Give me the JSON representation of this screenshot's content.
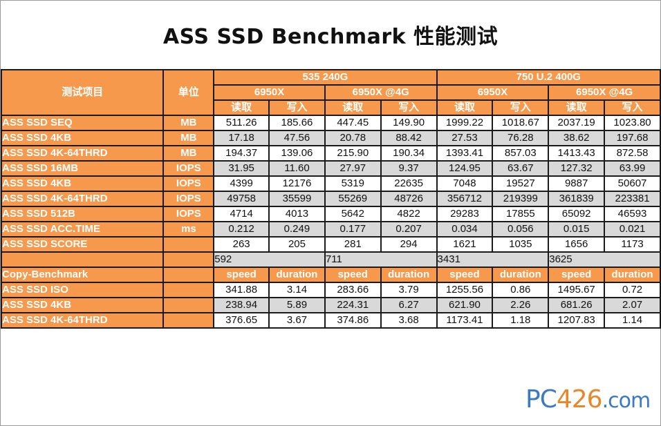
{
  "title": "ASS SSD Benchmark 性能测试",
  "chart_data": {
    "type": "table",
    "header": {
      "item_label": "测试项目",
      "unit_label": "单位",
      "drives": [
        {
          "name": "535 240G",
          "platforms": [
            "6950X",
            "6950X @4G"
          ]
        },
        {
          "name": "750 U.2 400G",
          "platforms": [
            "6950X",
            "6950X @4G"
          ]
        }
      ],
      "read_label": "读取",
      "write_label": "写入"
    },
    "rows": [
      {
        "label": "ASS SSD SEQ",
        "unit": "MB",
        "values": [
          "511.26",
          "185.66",
          "447.45",
          "149.90",
          "1999.22",
          "1018.67",
          "2037.19",
          "1023.80"
        ]
      },
      {
        "label": "ASS SSD 4KB",
        "unit": "MB",
        "values": [
          "17.18",
          "47.56",
          "20.78",
          "88.42",
          "27.53",
          "76.28",
          "38.62",
          "197.68"
        ]
      },
      {
        "label": "ASS SSD 4K-64THRD",
        "unit": "MB",
        "values": [
          "194.37",
          "139.06",
          "215.90",
          "190.34",
          "1393.41",
          "857.03",
          "1413.43",
          "872.58"
        ]
      },
      {
        "label": "ASS SSD 16MB",
        "unit": "IOPS",
        "values": [
          "31.95",
          "11.60",
          "27.97",
          "9.37",
          "124.95",
          "63.67",
          "127.32",
          "63.99"
        ]
      },
      {
        "label": "ASS SSD 4KB",
        "unit": "IOPS",
        "values": [
          "4399",
          "12176",
          "5319",
          "22635",
          "7048",
          "19527",
          "9887",
          "50607"
        ]
      },
      {
        "label": "ASS SSD 4K-64THRD",
        "unit": "IOPS",
        "values": [
          "49758",
          "35599",
          "55269",
          "48726",
          "356712",
          "219399",
          "361839",
          "223381"
        ]
      },
      {
        "label": "ASS SSD 512B",
        "unit": "IOPS",
        "values": [
          "4714",
          "4013",
          "5642",
          "4822",
          "29283",
          "17855",
          "65092",
          "46593"
        ]
      },
      {
        "label": "ASS SSD ACC.TIME",
        "unit": "ms",
        "values": [
          "0.212",
          "0.249",
          "0.177",
          "0.207",
          "0.034",
          "0.056",
          "0.015",
          "0.021"
        ]
      }
    ],
    "score": {
      "label": "ASS SSD SCORE",
      "unit": "",
      "values": [
        "263",
        "205",
        "281",
        "294",
        "1621",
        "1035",
        "1656",
        "1173"
      ]
    },
    "totals": [
      "592",
      "711",
      "3431",
      "3625"
    ],
    "copy_benchmark": {
      "label": "Copy-Benchmark",
      "speed_label": "speed",
      "duration_label": "duration",
      "rows": [
        {
          "label": "ASS SSD ISO",
          "values": [
            "341.88",
            "3.14",
            "283.66",
            "3.79",
            "1255.56",
            "0.86",
            "1495.67",
            "0.72"
          ]
        },
        {
          "label": "ASS SSD 4KB",
          "values": [
            "238.94",
            "5.89",
            "224.31",
            "6.27",
            "621.90",
            "2.26",
            "681.26",
            "2.07"
          ]
        },
        {
          "label": "ASS SSD 4K-64THRD",
          "values": [
            "376.65",
            "3.67",
            "374.86",
            "3.68",
            "1173.41",
            "1.18",
            "1207.83",
            "1.14"
          ]
        }
      ]
    }
  },
  "watermark": {
    "part1": "PC",
    "part2": "426",
    "part3": ".com"
  }
}
